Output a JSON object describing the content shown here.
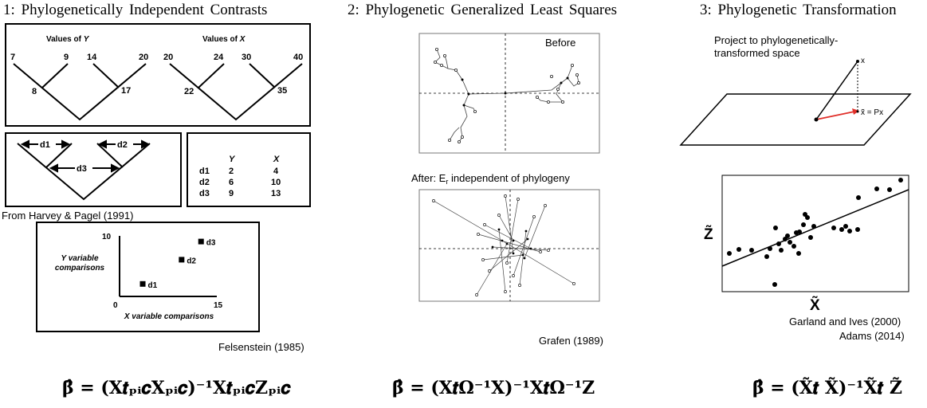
{
  "titles": {
    "pic": "1: Phylogenetically  Independent  Contrasts",
    "pgls": "2: Phylogenetic  Generalized  Least  Squares",
    "pt": "3: Phylogenetic  Transformation"
  },
  "panel1": {
    "tree_y_label": "Values of Y",
    "tree_y_var": "Y",
    "tree_x_label": "Values of X",
    "tree_x_var": "X",
    "y_tips": [
      "7",
      "9",
      "14",
      "20"
    ],
    "y_nodes": [
      "8",
      "17"
    ],
    "x_tips": [
      "20",
      "24",
      "30",
      "40"
    ],
    "x_nodes": [
      "22",
      "35"
    ],
    "contrast_labels": [
      "d1",
      "d2",
      "d3"
    ],
    "table": {
      "headers": [
        "Y",
        "X"
      ],
      "rows": [
        {
          "label": "d1",
          "y": "2",
          "x": "4"
        },
        {
          "label": "d2",
          "y": "6",
          "x": "10"
        },
        {
          "label": "d3",
          "y": "9",
          "x": "13"
        }
      ]
    },
    "credit_harvey": "From  Harvey & Pagel  (1991)",
    "scatter": {
      "y_axis_label_line1": "Y variable",
      "y_axis_label_line2": "comparisons",
      "x_axis_label": "X variable comparisons",
      "y_max_label": "10",
      "x_min_label": "0",
      "x_max_label": "15",
      "points": [
        {
          "label": "d1",
          "x": 4,
          "y": 2
        },
        {
          "label": "d2",
          "x": 10,
          "y": 6
        },
        {
          "label": "d3",
          "x": 13,
          "y": 9
        }
      ]
    },
    "credit_felsenstein": "Felsenstein (1985)"
  },
  "panel2": {
    "before_label": "Before",
    "after_label_prefix": "After: E",
    "after_label_sub": "r",
    "after_label_suffix": " independent of phylogeny",
    "credit": "Grafen (1989)"
  },
  "panel3": {
    "project_line1": "Project to phylogenetically-",
    "project_line2": "transformed space",
    "vec_x": "x",
    "vec_px": "x̃ = Px",
    "z_label": "Z̃",
    "x_label": "X̃",
    "credit_line1": "Garland and Ives (2000)",
    "credit_line2": "Adams (2014)"
  },
  "formulas": {
    "pic": "β̂ = (X𝒕ₚᵢ𝒄Xₚᵢ𝒄)⁻¹X𝒕ₚᵢ𝒄Zₚᵢ𝒄",
    "pgls": "β̂ = (X𝒕Ω⁻¹X)⁻¹X𝒕Ω⁻¹Z",
    "pt": "β̂ = (X̃𝒕 X̃)⁻¹X̃𝒕 Z̃"
  },
  "colors": {
    "projection_arrow": "#e0302a",
    "line": "#000000"
  }
}
